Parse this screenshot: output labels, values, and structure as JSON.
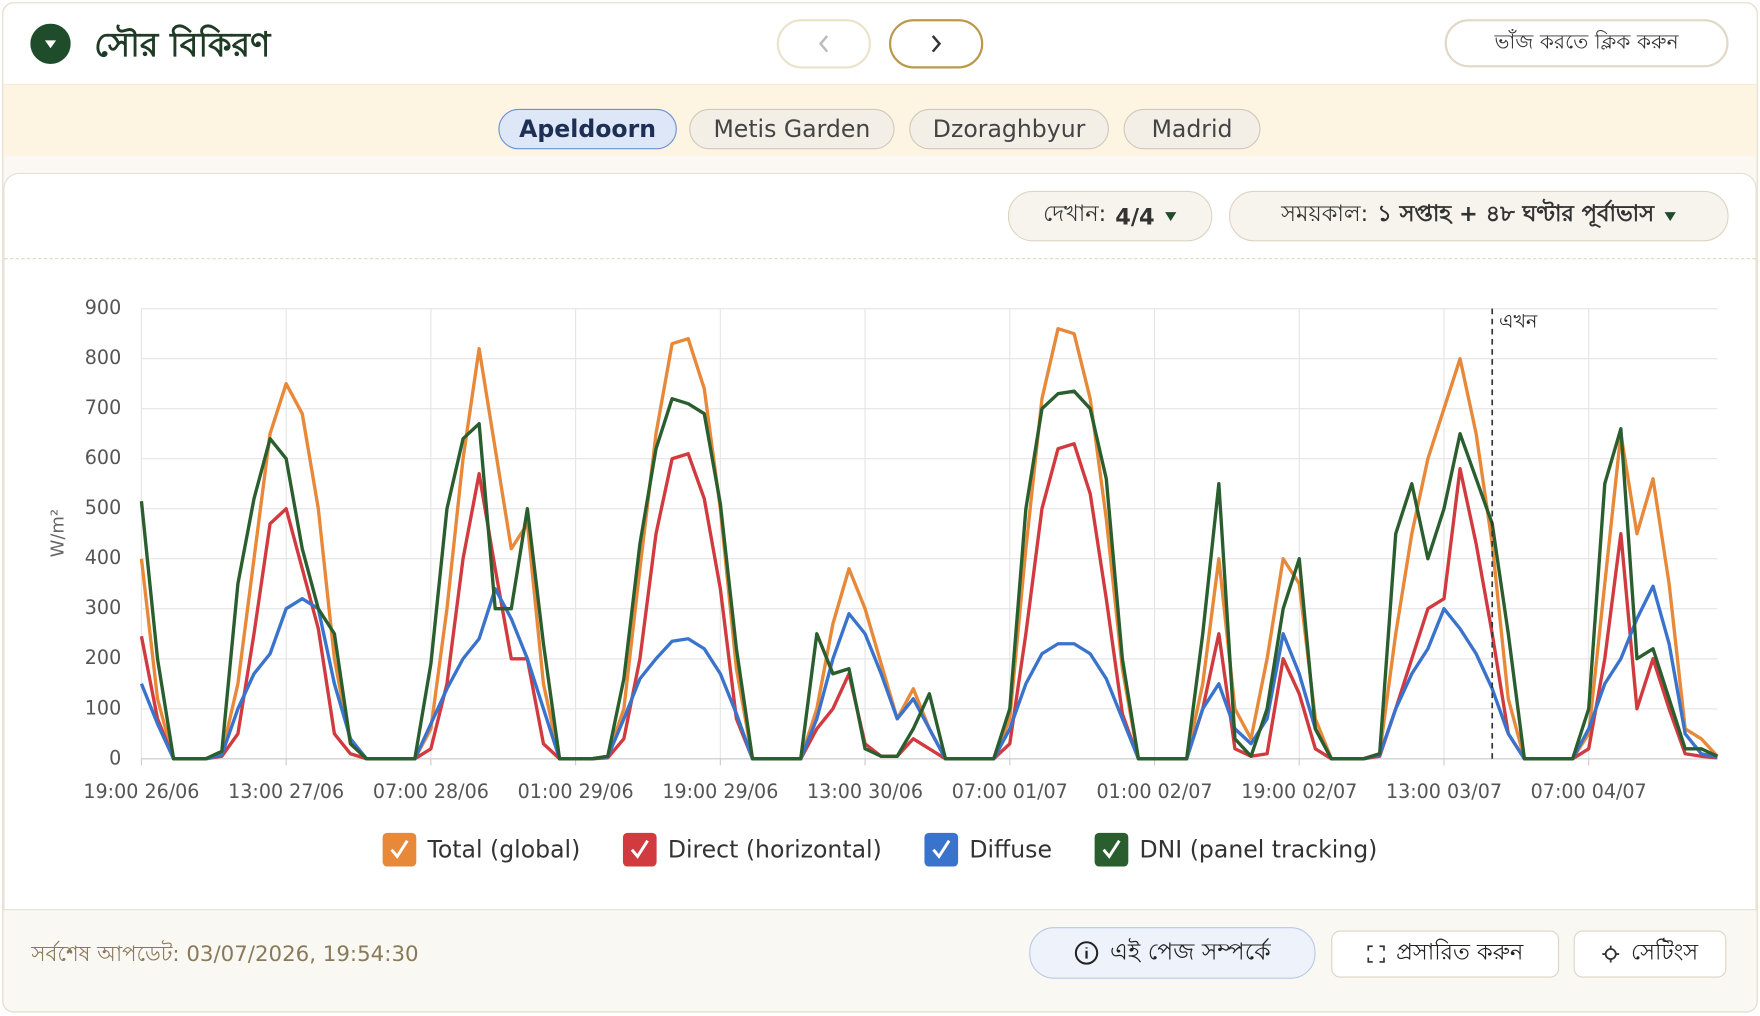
{
  "header": {
    "title": "সৌর বিকিরণ",
    "collapse_button": "ভাঁজ করতে ক্লিক করুন"
  },
  "tabs": [
    "Apeldoorn",
    "Metis Garden",
    "Dzoraghbyur",
    "Madrid"
  ],
  "toolbar": {
    "show_label": "দেখান:",
    "show_value": "4/4",
    "period_label": "সময়কাল:",
    "period_value": "১ সপ্তাহ + ৪৮ ঘণ্টার পূর্বাভাস"
  },
  "chart_data": {
    "type": "line",
    "y_label": "W/m²",
    "x": [
      "19:00 26/06",
      "21:00 26/06",
      "23:00 26/06",
      "01:00 27/06",
      "03:00 27/06",
      "05:00 27/06",
      "07:00 27/06",
      "09:00 27/06",
      "11:00 27/06",
      "13:00 27/06",
      "15:00 27/06",
      "17:00 27/06",
      "19:00 27/06",
      "21:00 27/06",
      "23:00 27/06",
      "01:00 28/06",
      "03:00 28/06",
      "05:00 28/06",
      "07:00 28/06",
      "09:00 28/06",
      "11:00 28/06",
      "13:00 28/06",
      "15:00 28/06",
      "17:00 28/06",
      "19:00 28/06",
      "21:00 28/06",
      "23:00 28/06",
      "01:00 29/06",
      "03:00 29/06",
      "05:00 29/06",
      "07:00 29/06",
      "09:00 29/06",
      "11:00 29/06",
      "13:00 29/06",
      "15:00 29/06",
      "17:00 29/06",
      "19:00 29/06",
      "21:00 29/06",
      "23:00 29/06",
      "01:00 30/06",
      "03:00 30/06",
      "05:00 30/06",
      "07:00 30/06",
      "09:00 30/06",
      "11:00 30/06",
      "13:00 30/06",
      "15:00 30/06",
      "17:00 30/06",
      "19:00 30/06",
      "21:00 30/06",
      "23:00 30/06",
      "01:00 01/07",
      "03:00 01/07",
      "05:00 01/07",
      "07:00 01/07",
      "09:00 01/07",
      "11:00 01/07",
      "13:00 01/07",
      "15:00 01/07",
      "17:00 01/07",
      "19:00 01/07",
      "21:00 01/07",
      "23:00 01/07",
      "01:00 02/07",
      "03:00 02/07",
      "05:00 02/07",
      "07:00 02/07",
      "09:00 02/07",
      "11:00 02/07",
      "13:00 02/07",
      "15:00 02/07",
      "17:00 02/07",
      "19:00 02/07",
      "21:00 02/07",
      "23:00 02/07",
      "01:00 03/07",
      "03:00 03/07",
      "05:00 03/07",
      "07:00 03/07",
      "09:00 03/07",
      "11:00 03/07",
      "13:00 03/07",
      "15:00 03/07",
      "17:00 03/07",
      "19:00 03/07",
      "21:00 03/07",
      "23:00 03/07",
      "01:00 04/07",
      "03:00 04/07",
      "05:00 04/07",
      "07:00 04/07",
      "09:00 04/07",
      "11:00 04/07",
      "13:00 04/07",
      "15:00 04/07",
      "17:00 04/07",
      "19:00 04/07",
      "21:00 04/07",
      "23:00 04/07"
    ],
    "series": [
      {
        "name": "Total (global)",
        "color": "#e8893a",
        "values": [
          400,
          120,
          0,
          0,
          0,
          10,
          150,
          400,
          650,
          750,
          690,
          500,
          200,
          30,
          0,
          0,
          0,
          0,
          60,
          300,
          600,
          820,
          620,
          420,
          470,
          150,
          0,
          0,
          0,
          5,
          100,
          380,
          650,
          830,
          840,
          740,
          500,
          180,
          0,
          0,
          0,
          0,
          100,
          270,
          380,
          300,
          190,
          80,
          140,
          60,
          0,
          0,
          0,
          0,
          80,
          420,
          720,
          860,
          850,
          720,
          480,
          180,
          0,
          0,
          0,
          0,
          150,
          400,
          100,
          40,
          200,
          400,
          350,
          80,
          0,
          0,
          0,
          10,
          250,
          450,
          600,
          700,
          800,
          650,
          430,
          120,
          0,
          0,
          0,
          0,
          50,
          350,
          650,
          450,
          560,
          350,
          60,
          40,
          5
        ]
      },
      {
        "name": "Direct (horizontal)",
        "color": "#d13b3f",
        "values": [
          245,
          80,
          0,
          0,
          0,
          5,
          50,
          250,
          470,
          500,
          380,
          260,
          50,
          10,
          0,
          0,
          0,
          0,
          20,
          150,
          400,
          570,
          380,
          200,
          200,
          30,
          0,
          0,
          0,
          2,
          40,
          200,
          450,
          600,
          610,
          520,
          340,
          80,
          0,
          0,
          0,
          0,
          60,
          100,
          170,
          30,
          5,
          5,
          40,
          20,
          0,
          0,
          0,
          0,
          30,
          250,
          500,
          620,
          630,
          530,
          320,
          90,
          0,
          0,
          0,
          0,
          100,
          250,
          20,
          5,
          10,
          200,
          130,
          20,
          0,
          0,
          0,
          5,
          100,
          200,
          300,
          320,
          580,
          430,
          250,
          50,
          0,
          0,
          0,
          0,
          20,
          200,
          450,
          100,
          200,
          100,
          10,
          5,
          2
        ]
      },
      {
        "name": "Diffuse",
        "color": "#3a73cc",
        "values": [
          150,
          70,
          0,
          0,
          0,
          8,
          100,
          170,
          210,
          300,
          320,
          300,
          150,
          40,
          0,
          0,
          0,
          0,
          70,
          140,
          200,
          240,
          340,
          280,
          200,
          100,
          0,
          0,
          0,
          4,
          80,
          160,
          200,
          235,
          240,
          220,
          170,
          90,
          0,
          0,
          0,
          0,
          80,
          200,
          290,
          250,
          170,
          80,
          120,
          60,
          0,
          0,
          0,
          0,
          60,
          150,
          210,
          230,
          230,
          210,
          160,
          80,
          0,
          0,
          0,
          0,
          100,
          150,
          60,
          30,
          80,
          250,
          170,
          60,
          0,
          0,
          0,
          8,
          100,
          170,
          220,
          300,
          260,
          210,
          140,
          50,
          0,
          0,
          0,
          0,
          60,
          150,
          200,
          280,
          345,
          230,
          50,
          10,
          3
        ]
      },
      {
        "name": "DNI (panel tracking)",
        "color": "#2a5e2e",
        "values": [
          515,
          200,
          0,
          0,
          0,
          15,
          350,
          520,
          640,
          600,
          420,
          300,
          250,
          30,
          0,
          0,
          0,
          0,
          190,
          500,
          640,
          670,
          300,
          300,
          500,
          230,
          0,
          0,
          0,
          5,
          160,
          430,
          620,
          720,
          710,
          690,
          510,
          220,
          0,
          0,
          0,
          0,
          250,
          170,
          180,
          20,
          5,
          5,
          60,
          130,
          0,
          0,
          0,
          0,
          100,
          500,
          700,
          730,
          735,
          700,
          560,
          200,
          0,
          0,
          0,
          0,
          250,
          550,
          40,
          5,
          100,
          300,
          400,
          60,
          0,
          0,
          0,
          10,
          450,
          550,
          400,
          500,
          650,
          560,
          470,
          250,
          0,
          0,
          0,
          0,
          100,
          550,
          660,
          200,
          220,
          120,
          20,
          20,
          5
        ]
      }
    ],
    "xlim": [
      "19:00 26/06",
      "23:00 04/07"
    ],
    "xticks": [
      "19:00 26/06",
      "13:00 27/06",
      "07:00 28/06",
      "01:00 29/06",
      "19:00 29/06",
      "13:00 30/06",
      "07:00 01/07",
      "01:00 02/07",
      "19:00 02/07",
      "13:00 03/07",
      "07:00 04/07"
    ],
    "ylim": [
      0,
      900
    ],
    "yticks": [
      0,
      100,
      200,
      300,
      400,
      500,
      600,
      700,
      800,
      900
    ],
    "grid": true,
    "now_line": {
      "text": "এখন",
      "x": "19:00 03/07"
    }
  },
  "footer": {
    "last_update": "সর্বশেষ আপডেট: 03/07/2026, 19:54:30",
    "buttons": [
      "এই পেজ সম্পর্কে",
      "প্রসারিত করুন",
      "সেটিংস"
    ]
  }
}
